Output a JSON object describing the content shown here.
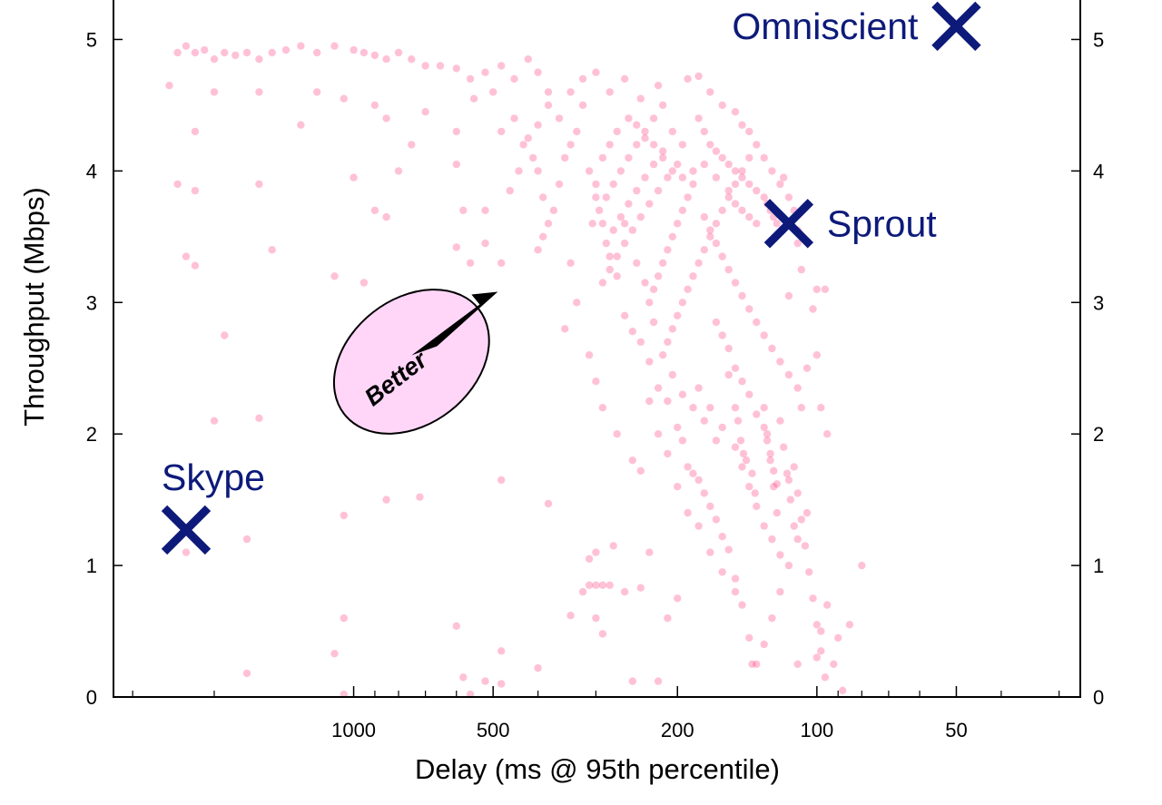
{
  "chart_data": {
    "type": "scatter",
    "title": "",
    "xlabel": "Delay (ms @ 95th percentile)",
    "ylabel": "Throughput (Mbps)",
    "x_scale": "log",
    "x_reversed": true,
    "xlim": [
      3300,
      27
    ],
    "ylim": [
      0,
      5.3
    ],
    "x_ticks": [
      1000,
      500,
      200,
      100,
      50
    ],
    "x_tick_labels": [
      "1000",
      "500",
      "200",
      "100",
      "50"
    ],
    "y_ticks": [
      0,
      1,
      2,
      3,
      4,
      5
    ],
    "y_tick_labels": [
      "0",
      "1",
      "2",
      "3",
      "4",
      "5"
    ],
    "grid": false,
    "point_color": "#ff1f6e",
    "marker_color": "#0d1a7a",
    "better_fill": "#ffd6f8",
    "markers": [
      {
        "name": "Omniscient",
        "x": 50,
        "y": 5.1,
        "label_side": "left"
      },
      {
        "name": "Sprout",
        "x": 115,
        "y": 3.6,
        "label_side": "right"
      },
      {
        "name": "Skype",
        "x": 2300,
        "y": 1.27,
        "label_side": "top"
      }
    ],
    "annotation": {
      "text": "Better",
      "x": 750,
      "y": 2.55
    },
    "points": [
      [
        2400,
        4.9
      ],
      [
        2300,
        4.95
      ],
      [
        2200,
        4.9
      ],
      [
        2100,
        4.92
      ],
      [
        2000,
        4.85
      ],
      [
        1900,
        4.9
      ],
      [
        1800,
        4.88
      ],
      [
        1700,
        4.9
      ],
      [
        1600,
        4.85
      ],
      [
        1500,
        4.9
      ],
      [
        1400,
        4.92
      ],
      [
        1300,
        4.95
      ],
      [
        1200,
        4.9
      ],
      [
        1100,
        4.95
      ],
      [
        1000,
        4.92
      ],
      [
        950,
        4.9
      ],
      [
        900,
        4.88
      ],
      [
        850,
        4.85
      ],
      [
        800,
        4.9
      ],
      [
        750,
        4.85
      ],
      [
        700,
        4.8
      ],
      [
        650,
        4.8
      ],
      [
        600,
        4.78
      ],
      [
        560,
        4.7
      ],
      [
        520,
        4.75
      ],
      [
        480,
        4.8
      ],
      [
        450,
        4.7
      ],
      [
        420,
        4.85
      ],
      [
        400,
        4.75
      ],
      [
        380,
        4.6
      ],
      [
        2500,
        4.65
      ],
      [
        2200,
        4.3
      ],
      [
        2000,
        4.6
      ],
      [
        1600,
        4.6
      ],
      [
        1300,
        4.35
      ],
      [
        1200,
        4.6
      ],
      [
        1050,
        4.55
      ],
      [
        900,
        4.5
      ],
      [
        850,
        4.4
      ],
      [
        750,
        4.2
      ],
      [
        700,
        4.45
      ],
      [
        600,
        4.3
      ],
      [
        550,
        4.55
      ],
      [
        500,
        4.6
      ],
      [
        480,
        4.3
      ],
      [
        450,
        4.4
      ],
      [
        430,
        4.2
      ],
      [
        410,
        4.1
      ],
      [
        400,
        4.0
      ],
      [
        390,
        3.8
      ],
      [
        2400,
        3.9
      ],
      [
        2200,
        3.85
      ],
      [
        1600,
        3.9
      ],
      [
        1000,
        3.95
      ],
      [
        900,
        3.7
      ],
      [
        850,
        3.65
      ],
      [
        800,
        4.0
      ],
      [
        600,
        4.05
      ],
      [
        580,
        3.7
      ],
      [
        520,
        3.7
      ],
      [
        2300,
        3.35
      ],
      [
        2200,
        3.28
      ],
      [
        1500,
        3.4
      ],
      [
        1100,
        3.2
      ],
      [
        950,
        3.15
      ],
      [
        700,
        3.05
      ],
      [
        600,
        3.42
      ],
      [
        560,
        3.3
      ],
      [
        520,
        3.45
      ],
      [
        480,
        3.3
      ],
      [
        1900,
        2.75
      ],
      [
        880,
        2.7
      ],
      [
        2000,
        2.1
      ],
      [
        1700,
        1.2
      ],
      [
        1600,
        2.12
      ],
      [
        1050,
        1.38
      ],
      [
        850,
        1.5
      ],
      [
        720,
        1.52
      ],
      [
        480,
        1.65
      ],
      [
        380,
        1.47
      ],
      [
        2300,
        1.1
      ],
      [
        1050,
        0.6
      ],
      [
        1700,
        0.18
      ],
      [
        1100,
        0.33
      ],
      [
        1050,
        0.02
      ],
      [
        600,
        0.54
      ],
      [
        580,
        0.15
      ],
      [
        560,
        0.02
      ],
      [
        520,
        0.12
      ],
      [
        480,
        0.35
      ],
      [
        480,
        0.1
      ],
      [
        400,
        0.22
      ],
      [
        340,
        0.62
      ],
      [
        300,
        0.6
      ],
      [
        290,
        0.48
      ],
      [
        320,
        0.8
      ],
      [
        310,
        1.05
      ],
      [
        300,
        1.1
      ],
      [
        310,
        0.85
      ],
      [
        300,
        0.85
      ],
      [
        290,
        0.85
      ],
      [
        280,
        0.85
      ],
      [
        275,
        1.15
      ],
      [
        260,
        0.8
      ],
      [
        250,
        0.12
      ],
      [
        240,
        0.83
      ],
      [
        230,
        1.1
      ],
      [
        220,
        0.12
      ],
      [
        210,
        0.6
      ],
      [
        200,
        0.75
      ],
      [
        300,
        3.8
      ],
      [
        290,
        3.6
      ],
      [
        280,
        3.35
      ],
      [
        270,
        3.2
      ],
      [
        260,
        2.9
      ],
      [
        250,
        2.78
      ],
      [
        240,
        2.7
      ],
      [
        230,
        2.55
      ],
      [
        220,
        2.35
      ],
      [
        210,
        2.25
      ],
      [
        200,
        2.05
      ],
      [
        195,
        1.95
      ],
      [
        190,
        1.75
      ],
      [
        185,
        1.7
      ],
      [
        180,
        1.65
      ],
      [
        175,
        1.55
      ],
      [
        170,
        1.45
      ],
      [
        165,
        1.35
      ],
      [
        160,
        1.22
      ],
      [
        155,
        1.12
      ],
      [
        150,
        0.9
      ],
      [
        145,
        0.7
      ],
      [
        140,
        0.45
      ],
      [
        138,
        0.25
      ],
      [
        135,
        0.25
      ],
      [
        130,
        0.4
      ],
      [
        125,
        0.6
      ],
      [
        120,
        0.8
      ],
      [
        115,
        1.0
      ],
      [
        110,
        1.2
      ],
      [
        105,
        1.4
      ],
      [
        100,
        0.3
      ],
      [
        98,
        0.5
      ],
      [
        95,
        0.7
      ],
      [
        92,
        0.25
      ],
      [
        90,
        0.45
      ],
      [
        88,
        0.05
      ],
      [
        85,
        0.55
      ],
      [
        80,
        1.0
      ],
      [
        110,
        0.25
      ],
      [
        115,
        1.65
      ],
      [
        112,
        1.75
      ],
      [
        110,
        1.55
      ],
      [
        108,
        1.35
      ],
      [
        106,
        1.15
      ],
      [
        104,
        0.95
      ],
      [
        102,
        0.75
      ],
      [
        100,
        0.55
      ],
      [
        98,
        0.35
      ],
      [
        96,
        0.15
      ],
      [
        120,
        2.1
      ],
      [
        118,
        1.9
      ],
      [
        116,
        1.7
      ],
      [
        114,
        1.5
      ],
      [
        112,
        1.3
      ],
      [
        130,
        2.2
      ],
      [
        128,
        2.0
      ],
      [
        126,
        1.8
      ],
      [
        124,
        1.6
      ],
      [
        122,
        1.4
      ],
      [
        105,
        2.5
      ],
      [
        100,
        2.6
      ],
      [
        98,
        2.2
      ],
      [
        95,
        2.0
      ],
      [
        102,
        2.95
      ],
      [
        100,
        3.1
      ],
      [
        96,
        3.1
      ],
      [
        108,
        3.25
      ],
      [
        110,
        3.45
      ],
      [
        115,
        3.05
      ],
      [
        190,
        4.7
      ],
      [
        180,
        4.72
      ],
      [
        170,
        4.6
      ],
      [
        160,
        4.5
      ],
      [
        150,
        4.45
      ],
      [
        145,
        4.35
      ],
      [
        140,
        4.3
      ],
      [
        135,
        4.2
      ],
      [
        130,
        4.1
      ],
      [
        125,
        4.0
      ],
      [
        120,
        3.9
      ],
      [
        118,
        3.95
      ],
      [
        115,
        3.8
      ],
      [
        112,
        3.7
      ],
      [
        110,
        3.55
      ],
      [
        140,
        4.1
      ],
      [
        145,
        4.0
      ],
      [
        150,
        3.9
      ],
      [
        155,
        3.8
      ],
      [
        160,
        3.7
      ],
      [
        165,
        3.6
      ],
      [
        170,
        3.5
      ],
      [
        175,
        3.4
      ],
      [
        180,
        3.3
      ],
      [
        185,
        3.2
      ],
      [
        190,
        3.1
      ],
      [
        195,
        3.0
      ],
      [
        200,
        2.9
      ],
      [
        205,
        2.8
      ],
      [
        210,
        2.7
      ],
      [
        215,
        4.5
      ],
      [
        225,
        4.4
      ],
      [
        235,
        4.3
      ],
      [
        245,
        4.2
      ],
      [
        255,
        4.1
      ],
      [
        265,
        4.0
      ],
      [
        275,
        3.9
      ],
      [
        285,
        3.8
      ],
      [
        295,
        3.7
      ],
      [
        305,
        3.6
      ],
      [
        180,
        4.4
      ],
      [
        175,
        4.3
      ],
      [
        170,
        4.2
      ],
      [
        165,
        4.15
      ],
      [
        160,
        4.1
      ],
      [
        155,
        4.05
      ],
      [
        150,
        4.0
      ],
      [
        145,
        3.95
      ],
      [
        140,
        3.9
      ],
      [
        135,
        3.85
      ],
      [
        130,
        3.8
      ],
      [
        128,
        3.75
      ],
      [
        126,
        3.7
      ],
      [
        124,
        3.65
      ],
      [
        122,
        3.6
      ],
      [
        200,
        4.05
      ],
      [
        210,
        3.95
      ],
      [
        220,
        3.85
      ],
      [
        230,
        3.75
      ],
      [
        240,
        3.65
      ],
      [
        250,
        3.55
      ],
      [
        260,
        3.45
      ],
      [
        270,
        3.35
      ],
      [
        280,
        3.25
      ],
      [
        290,
        3.15
      ],
      [
        195,
        4.2
      ],
      [
        205,
        4.3
      ],
      [
        215,
        4.15
      ],
      [
        225,
        4.05
      ],
      [
        235,
        3.95
      ],
      [
        245,
        3.85
      ],
      [
        255,
        3.75
      ],
      [
        265,
        3.65
      ],
      [
        275,
        3.55
      ],
      [
        285,
        3.45
      ],
      [
        185,
        3.9
      ],
      [
        190,
        3.8
      ],
      [
        195,
        3.7
      ],
      [
        200,
        3.6
      ],
      [
        205,
        3.5
      ],
      [
        210,
        3.4
      ],
      [
        215,
        3.3
      ],
      [
        220,
        3.2
      ],
      [
        225,
        3.1
      ],
      [
        230,
        3.0
      ],
      [
        175,
        3.65
      ],
      [
        170,
        3.55
      ],
      [
        165,
        3.45
      ],
      [
        160,
        3.35
      ],
      [
        155,
        3.25
      ],
      [
        150,
        3.15
      ],
      [
        145,
        3.05
      ],
      [
        140,
        2.95
      ],
      [
        135,
        2.85
      ],
      [
        130,
        2.75
      ],
      [
        125,
        2.65
      ],
      [
        120,
        2.55
      ],
      [
        115,
        2.45
      ],
      [
        110,
        2.35
      ],
      [
        108,
        2.2
      ],
      [
        320,
        4.5
      ],
      [
        330,
        4.3
      ],
      [
        340,
        4.2
      ],
      [
        350,
        4.1
      ],
      [
        360,
        3.9
      ],
      [
        370,
        3.7
      ],
      [
        380,
        3.6
      ],
      [
        390,
        3.5
      ],
      [
        400,
        3.4
      ],
      [
        360,
        4.4
      ],
      [
        340,
        4.6
      ],
      [
        320,
        4.7
      ],
      [
        300,
        4.75
      ],
      [
        280,
        4.6
      ],
      [
        260,
        4.7
      ],
      [
        240,
        4.55
      ],
      [
        220,
        4.65
      ],
      [
        380,
        4.5
      ],
      [
        400,
        4.35
      ],
      [
        420,
        4.25
      ],
      [
        440,
        4.0
      ],
      [
        460,
        3.85
      ],
      [
        340,
        3.3
      ],
      [
        330,
        3.0
      ],
      [
        350,
        2.8
      ],
      [
        310,
        2.6
      ],
      [
        300,
        2.4
      ],
      [
        290,
        2.2
      ],
      [
        270,
        2.0
      ],
      [
        250,
        1.8
      ],
      [
        240,
        1.72
      ],
      [
        230,
        2.25
      ],
      [
        220,
        2.0
      ],
      [
        210,
        1.85
      ],
      [
        200,
        1.6
      ],
      [
        190,
        1.4
      ],
      [
        180,
        1.3
      ],
      [
        170,
        1.1
      ],
      [
        160,
        0.95
      ],
      [
        150,
        0.8
      ],
      [
        180,
        2.35
      ],
      [
        170,
        2.2
      ],
      [
        160,
        2.05
      ],
      [
        150,
        1.9
      ],
      [
        145,
        1.75
      ],
      [
        140,
        1.6
      ],
      [
        135,
        1.45
      ],
      [
        130,
        1.3
      ],
      [
        125,
        1.2
      ],
      [
        120,
        1.08
      ],
      [
        260,
        3.6
      ],
      [
        245,
        3.3
      ],
      [
        235,
        3.15
      ],
      [
        225,
        2.85
      ],
      [
        215,
        2.6
      ],
      [
        205,
        2.45
      ],
      [
        195,
        2.3
      ],
      [
        185,
        2.2
      ],
      [
        175,
        2.1
      ],
      [
        165,
        1.95
      ],
      [
        155,
        2.65
      ],
      [
        150,
        2.5
      ],
      [
        145,
        2.4
      ],
      [
        140,
        2.3
      ],
      [
        135,
        2.15
      ],
      [
        130,
        2.05
      ],
      [
        128,
        1.95
      ],
      [
        126,
        1.85
      ],
      [
        124,
        1.72
      ],
      [
        122,
        1.62
      ],
      [
        165,
        2.85
      ],
      [
        160,
        2.75
      ],
      [
        155,
        2.45
      ],
      [
        150,
        2.2
      ],
      [
        148,
        2.1
      ],
      [
        146,
        1.95
      ],
      [
        144,
        1.85
      ],
      [
        142,
        1.8
      ],
      [
        138,
        1.7
      ],
      [
        136,
        1.55
      ],
      [
        310,
        4.0
      ],
      [
        300,
        3.9
      ],
      [
        290,
        4.1
      ],
      [
        280,
        4.2
      ],
      [
        270,
        4.3
      ],
      [
        255,
        4.4
      ],
      [
        245,
        4.35
      ],
      [
        235,
        4.25
      ],
      [
        225,
        4.2
      ],
      [
        215,
        4.1
      ],
      [
        205,
        4.0
      ],
      [
        195,
        3.95
      ],
      [
        185,
        4.0
      ],
      [
        175,
        4.05
      ],
      [
        165,
        3.95
      ],
      [
        155,
        3.85
      ],
      [
        150,
        3.75
      ],
      [
        145,
        3.7
      ],
      [
        140,
        3.65
      ],
      [
        135,
        3.6
      ]
    ]
  }
}
